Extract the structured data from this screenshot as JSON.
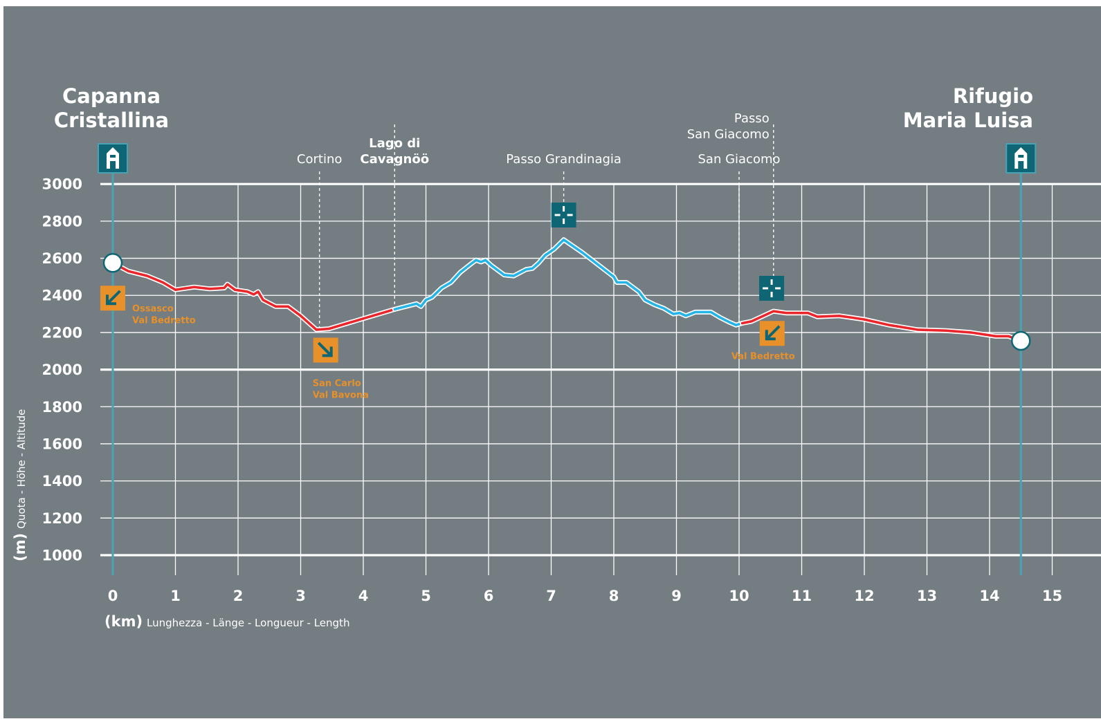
{
  "colors": {
    "background": "#737d82",
    "grid": "#ffffff",
    "alpine_route": "#e8262b",
    "high_alpine_route": "#26b4e6",
    "hut_marker": "#0e6574",
    "exit_marker": "#e8902a",
    "pole_line": "#4aa3b4"
  },
  "icons": {
    "hut": "hut-icon",
    "pass": "pass-crosshair-icon",
    "exit": "exit-arrow-icon",
    "endpoint": "waypoint-circle-icon"
  },
  "chart_data": {
    "type": "line",
    "x_unit": "(km)",
    "x_label": "Lunghezza - Länge - Longueur - Length",
    "y_unit": "(m)",
    "y_label": "Quota - Höhe - Altitude",
    "xlim": [
      0,
      15
    ],
    "ylim": [
      1000,
      3000
    ],
    "x_ticks": [
      "0",
      "1",
      "2",
      "3",
      "4",
      "5",
      "6",
      "7",
      "8",
      "9",
      "10",
      "11",
      "12",
      "13",
      "14",
      "15"
    ],
    "y_ticks": [
      "1000",
      "1200",
      "1400",
      "1600",
      "1800",
      "2000",
      "2200",
      "2400",
      "2600",
      "2800",
      "3000"
    ],
    "grid": true,
    "start": {
      "label_lines": [
        "Capanna",
        "Cristallina"
      ],
      "km": 0,
      "alt": 2575
    },
    "end": {
      "label_lines": [
        "Rifugio",
        "Maria Luisa"
      ],
      "km": 14.5,
      "alt": 2155
    },
    "series": [
      {
        "style": "red",
        "points": [
          [
            0,
            2575
          ],
          [
            0.25,
            2530
          ],
          [
            0.55,
            2505
          ],
          [
            0.8,
            2470
          ],
          [
            1.0,
            2430
          ],
          [
            1.3,
            2445
          ],
          [
            1.55,
            2435
          ],
          [
            1.78,
            2440
          ],
          [
            1.83,
            2460
          ],
          [
            1.95,
            2430
          ],
          [
            2.15,
            2420
          ],
          [
            2.25,
            2405
          ],
          [
            2.32,
            2420
          ],
          [
            2.4,
            2375
          ],
          [
            2.6,
            2340
          ],
          [
            2.8,
            2340
          ],
          [
            3.0,
            2290
          ],
          [
            3.25,
            2215
          ],
          [
            3.45,
            2220
          ],
          [
            4.0,
            2275
          ],
          [
            4.5,
            2325
          ]
        ]
      },
      {
        "style": "blue",
        "points": [
          [
            4.5,
            2325
          ],
          [
            4.85,
            2355
          ],
          [
            4.92,
            2340
          ],
          [
            5.0,
            2375
          ],
          [
            5.1,
            2390
          ],
          [
            5.25,
            2440
          ],
          [
            5.4,
            2470
          ],
          [
            5.55,
            2525
          ],
          [
            5.7,
            2565
          ],
          [
            5.8,
            2590
          ],
          [
            5.88,
            2580
          ],
          [
            5.95,
            2590
          ],
          [
            6.05,
            2560
          ],
          [
            6.25,
            2510
          ],
          [
            6.4,
            2505
          ],
          [
            6.6,
            2540
          ],
          [
            6.7,
            2545
          ],
          [
            6.8,
            2575
          ],
          [
            6.9,
            2615
          ],
          [
            7.05,
            2650
          ],
          [
            7.2,
            2700
          ],
          [
            7.5,
            2630
          ],
          [
            8.0,
            2500
          ],
          [
            8.05,
            2470
          ],
          [
            8.2,
            2470
          ],
          [
            8.4,
            2420
          ],
          [
            8.5,
            2375
          ],
          [
            8.65,
            2350
          ],
          [
            8.8,
            2330
          ],
          [
            8.95,
            2300
          ],
          [
            9.05,
            2305
          ],
          [
            9.15,
            2290
          ],
          [
            9.3,
            2310
          ],
          [
            9.55,
            2310
          ],
          [
            9.7,
            2280
          ],
          [
            9.85,
            2255
          ],
          [
            9.95,
            2240
          ],
          [
            10.05,
            2250
          ]
        ]
      },
      {
        "style": "red",
        "points": [
          [
            10.05,
            2250
          ],
          [
            10.2,
            2260
          ],
          [
            10.55,
            2315
          ],
          [
            10.75,
            2305
          ],
          [
            11.1,
            2305
          ],
          [
            11.25,
            2285
          ],
          [
            11.6,
            2290
          ],
          [
            11.8,
            2280
          ],
          [
            12.0,
            2270
          ],
          [
            12.4,
            2240
          ],
          [
            12.85,
            2215
          ],
          [
            13.3,
            2210
          ],
          [
            13.7,
            2200
          ],
          [
            14.1,
            2180
          ],
          [
            14.3,
            2180
          ],
          [
            14.5,
            2155
          ]
        ]
      }
    ],
    "points_of_interest": [
      {
        "label_lines": [
          "Cortino"
        ],
        "km": 3.3,
        "label_km": 3.3,
        "bold": false
      },
      {
        "label_lines": [
          "Lago di",
          "Cavagnöö"
        ],
        "km": 4.5,
        "label_km": 4.5,
        "bold": true
      },
      {
        "label_lines": [
          "Passo Grandinagia"
        ],
        "km": 7.2,
        "label_km": 7.2,
        "bold": false,
        "pass_icon": true
      },
      {
        "label_lines": [
          "San Giacomo"
        ],
        "km": 10.0,
        "label_km": 10.0,
        "bold": false
      },
      {
        "label_lines": [
          "Passo",
          "San Giacomo"
        ],
        "km": 10.55,
        "label_km": 10.35,
        "bold": false,
        "pass_icon": true
      }
    ],
    "exits": [
      {
        "label_lines": [
          "Ossasco",
          "Val Bedretto"
        ],
        "km": 0,
        "alt": 2385,
        "arrow": "down-left",
        "label_pos": "right"
      },
      {
        "label_lines": [
          "San Carlo",
          "Val Bavona"
        ],
        "km": 3.4,
        "alt": 2105,
        "arrow": "down-right",
        "label_pos": "below"
      },
      {
        "label_lines": [
          "Val Bedretto"
        ],
        "km": 10.55,
        "alt": 2195,
        "arrow": "down-left",
        "label_pos": "below"
      }
    ]
  }
}
